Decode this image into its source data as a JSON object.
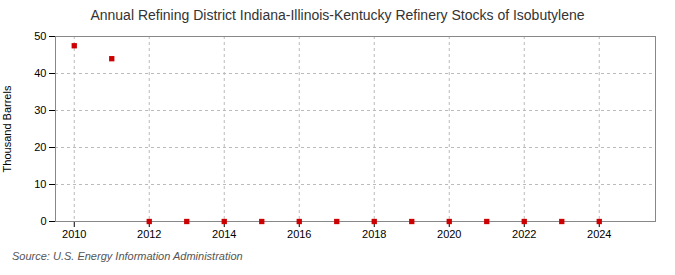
{
  "chart_data": {
    "type": "scatter",
    "title": "Annual Refining District Indiana-Illinois-Kentucky Refinery Stocks of Isobutylene",
    "ylabel": "Thousand Barrels",
    "source": "Source: U.S. Energy Information Administration",
    "x": [
      2010,
      2011,
      2012,
      2013,
      2014,
      2015,
      2016,
      2017,
      2018,
      2019,
      2020,
      2021,
      2022,
      2023,
      2024
    ],
    "values": [
      47.5,
      44.0,
      0.0,
      0.0,
      0.0,
      0.0,
      0.0,
      0.0,
      0.0,
      0.0,
      0.0,
      0.0,
      0.0,
      0.0,
      0.0
    ],
    "color": "#cc0000",
    "marker": "square",
    "grid": true,
    "xlim": [
      2009.5,
      2025.5
    ],
    "ylim": [
      0,
      50
    ],
    "xticks": [
      2010,
      2012,
      2014,
      2016,
      2018,
      2020,
      2022,
      2024
    ],
    "yticks": [
      0,
      10,
      20,
      30,
      40,
      50
    ]
  }
}
